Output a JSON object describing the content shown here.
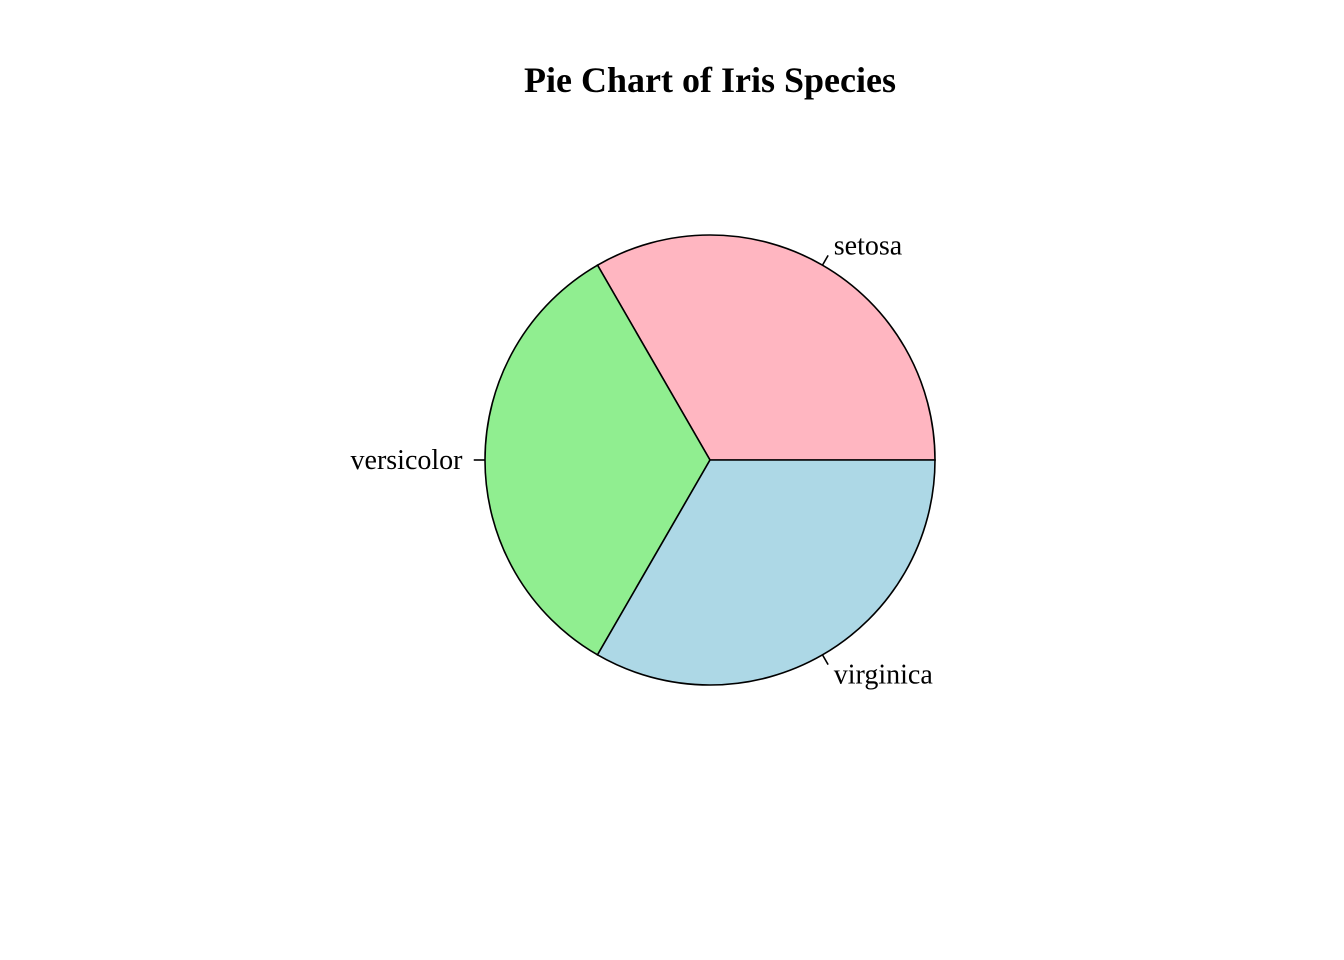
{
  "chart_data": {
    "type": "pie",
    "title": "Pie Chart of Iris Species",
    "labels": [
      "setosa",
      "versicolor",
      "virginica"
    ],
    "values": [
      50,
      50,
      50
    ],
    "colors": [
      "#FFB6C1",
      "#90EE90",
      "#ADD8E6"
    ],
    "start_angle_deg": 0,
    "direction": "counterclockwise",
    "border_color": "#000000"
  }
}
